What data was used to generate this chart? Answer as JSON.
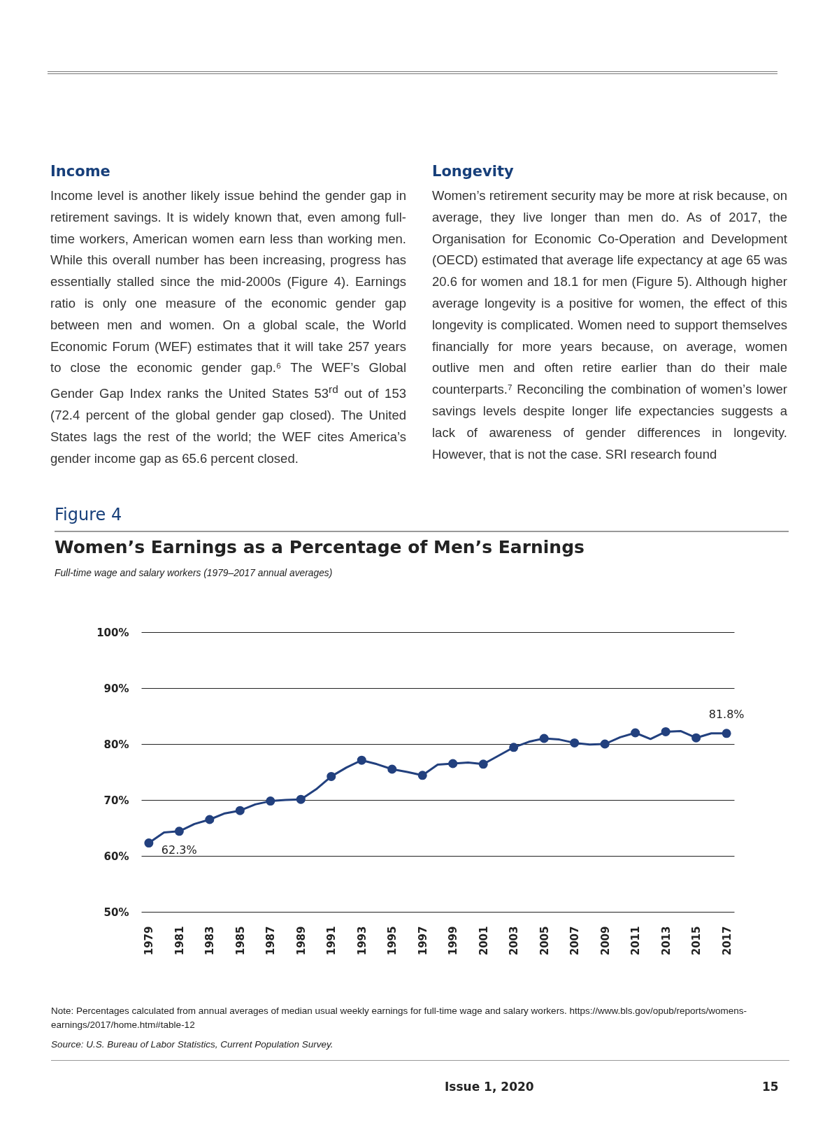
{
  "chart_data": {
    "type": "line",
    "title": "Women’s Earnings as a Percentage of Men’s Earnings",
    "subtitle": "Full-time wage and salary workers (1979–2017 annual averages)",
    "categories": [
      "1979",
      null,
      "1981",
      null,
      "1983",
      null,
      "1985",
      null,
      "1987",
      null,
      "1989",
      null,
      "1991",
      null,
      "1993",
      null,
      "1995",
      null,
      "1997",
      null,
      "1999",
      null,
      "2001",
      null,
      "2003",
      null,
      "2005",
      null,
      "2007",
      null,
      "2009",
      null,
      "2011",
      null,
      "2013",
      null,
      "2015",
      null,
      "2017"
    ],
    "series": [
      {
        "color": "#22407e",
        "values": [
          62.3,
          64.2,
          64.4,
          65.7,
          66.5,
          67.6,
          68.1,
          69.2,
          69.8,
          70.0,
          70.1,
          71.9,
          74.2,
          75.8,
          77.1,
          76.4,
          75.5,
          75.0,
          74.4,
          76.3,
          76.5,
          76.7,
          76.4,
          77.9,
          79.4,
          80.4,
          81.0,
          80.8,
          80.2,
          79.9,
          80.0,
          81.2,
          82.0,
          80.9,
          82.2,
          82.3,
          81.1,
          81.9,
          81.9
        ]
      }
    ],
    "ylim": [
      50,
      100
    ],
    "yticks": [
      {
        "value": 50,
        "label": "50%"
      },
      {
        "value": 60,
        "label": "60%"
      },
      {
        "value": 70,
        "label": "70%"
      },
      {
        "value": 80,
        "label": "80%"
      },
      {
        "value": 90,
        "label": "90%"
      },
      {
        "value": 100,
        "label": "100%"
      }
    ],
    "grid": "y",
    "marker": "circle",
    "line_style": "solid",
    "legend": false,
    "annotations": [
      "Income",
      "Income level is another likely issue behind the gender gap in retirement savings. It is widely known that, even among full-time workers, American women earn less than working men. While this overall number has been increasing, progress has essentially stalled since the mid-2000s (Figure 4). Earnings ratio is only one measure of the economic gender gap between men and women. On a global scale, the World Economic Forum (WEF) estimates that it will take 257 years to close the economic gender gap.⁶ The WEF’s Global Gender Gap Index ranks the United States 53$^{rd}$ out of 153 (72.4 percent of the global gender gap closed). The United States lags the rest of the world; the WEF cites America’s gender income gap as 65.6 percent closed.",
      "Longevity",
      "Women’s retirement security may be more at risk because, on average, they live longer than men do. As of 2017, the Organisation for Economic Co-Operation and Development (OECD) estimated that average life expectancy at age 65 was 20.6 for women and 18.1 for men (Figure 5). Although higher average longevity is a positive for women, the effect of this longevity is complicated. Women need to support themselves financially for more years because, on average, women outlive men and often retire earlier than do their male counterparts.⁷ Reconciling the combination of women’s lower savings levels despite longer life expectancies suggests a lack of awareness of gender differences in longevity. However, that is not the case. SRI research found",
      "Figure 4",
      "Note: Percentages calculated from annual averages of median usual weekly earnings for full-time wage and salary workers. https://www.bls.gov/opub/reports/womens-earnings/2017/home.htm#table-12",
      "Source: U.S. Bureau of Labor Statistics, Current Population Survey.",
      "Issue 1, 2020",
      "15",
      {
        "text": "62.3%",
        "x": "1979",
        "y": 62.3
      },
      {
        "text": "81.8%",
        "x": "2017",
        "y": 81.8
      }
    ]
  }
}
